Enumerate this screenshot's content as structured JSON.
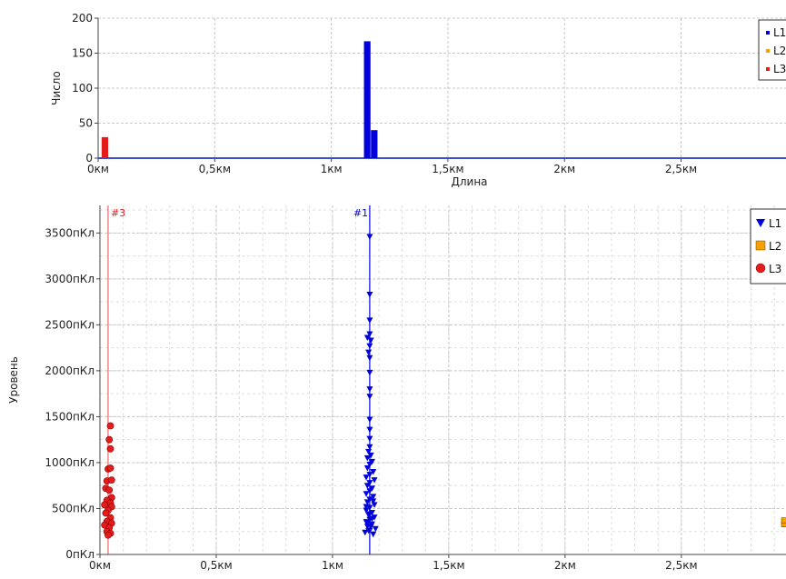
{
  "colors": {
    "L1": "#0000dd",
    "L2": "#f5a000",
    "L3": "#e31c1c",
    "grid": "#c8c8c8",
    "axis": "#444444"
  },
  "chart_data": [
    {
      "type": "bar",
      "xlabel": "Длина",
      "ylabel": "Число",
      "xlim": [
        0,
        2.95
      ],
      "ylim": [
        0,
        200
      ],
      "x_ticks": [
        {
          "value": 0,
          "label": "0км"
        },
        {
          "value": 0.5,
          "label": "0,5км"
        },
        {
          "value": 1,
          "label": "1км"
        },
        {
          "value": 1.5,
          "label": "1,5км"
        },
        {
          "value": 2,
          "label": "2км"
        },
        {
          "value": 2.5,
          "label": "2,5км"
        }
      ],
      "y_ticks": [
        {
          "value": 0,
          "label": "0"
        },
        {
          "value": 50,
          "label": "50"
        },
        {
          "value": 100,
          "label": "100"
        },
        {
          "value": 150,
          "label": "150"
        },
        {
          "value": 200,
          "label": "200"
        }
      ],
      "legend": {
        "placement": "top-right",
        "entries": [
          "L1",
          "L2",
          "L3"
        ]
      },
      "series": [
        {
          "name": "L1",
          "bins": [
            {
              "x0": 1.14,
              "x1": 1.17,
              "value": 167
            },
            {
              "x0": 1.17,
              "x1": 1.2,
              "value": 40
            }
          ]
        },
        {
          "name": "L2",
          "bins": []
        },
        {
          "name": "L3",
          "bins": [
            {
              "x0": 0.015,
              "x1": 0.045,
              "value": 30
            }
          ]
        }
      ]
    },
    {
      "type": "scatter",
      "xlabel": "",
      "ylabel": "Уровень",
      "xlim": [
        0,
        2.95
      ],
      "ylim": [
        0,
        3800
      ],
      "x_ticks": [
        {
          "value": 0,
          "label": "0км"
        },
        {
          "value": 0.5,
          "label": "0,5км"
        },
        {
          "value": 1,
          "label": "1км"
        },
        {
          "value": 1.5,
          "label": "1,5км"
        },
        {
          "value": 2,
          "label": "2км"
        },
        {
          "value": 2.5,
          "label": "2,5км"
        }
      ],
      "y_ticks": [
        {
          "value": 0,
          "label": "0пКл"
        },
        {
          "value": 500,
          "label": "500пКл"
        },
        {
          "value": 1000,
          "label": "1000пКл"
        },
        {
          "value": 1500,
          "label": "1500пКл"
        },
        {
          "value": 2000,
          "label": "2000пКл"
        },
        {
          "value": 2500,
          "label": "2500пКл"
        },
        {
          "value": 3000,
          "label": "3000пКл"
        },
        {
          "value": 3500,
          "label": "3500пКл"
        }
      ],
      "markers": [
        {
          "label": "#3",
          "x": 0.035,
          "series": "L3"
        },
        {
          "label": "#1",
          "x": 1.16,
          "series": "L1"
        }
      ],
      "legend": {
        "placement": "top-right",
        "entries": [
          "L1",
          "L2",
          "L3"
        ]
      },
      "series": [
        {
          "name": "L1",
          "marker": "triangle-down",
          "points": [
            [
              1.16,
              3460
            ],
            [
              1.16,
              2830
            ],
            [
              1.16,
              2550
            ],
            [
              1.16,
              2400
            ],
            [
              1.15,
              2360
            ],
            [
              1.165,
              2330
            ],
            [
              1.16,
              2270
            ],
            [
              1.155,
              2200
            ],
            [
              1.16,
              2140
            ],
            [
              1.16,
              1980
            ],
            [
              1.16,
              1800
            ],
            [
              1.16,
              1720
            ],
            [
              1.16,
              1470
            ],
            [
              1.16,
              1360
            ],
            [
              1.16,
              1260
            ],
            [
              1.16,
              1170
            ],
            [
              1.155,
              1120
            ],
            [
              1.165,
              1080
            ],
            [
              1.15,
              1050
            ],
            [
              1.17,
              1010
            ],
            [
              1.16,
              980
            ],
            [
              1.15,
              940
            ],
            [
              1.175,
              900
            ],
            [
              1.16,
              870
            ],
            [
              1.145,
              840
            ],
            [
              1.18,
              810
            ],
            [
              1.16,
              780
            ],
            [
              1.15,
              750
            ],
            [
              1.17,
              720
            ],
            [
              1.16,
              690
            ],
            [
              1.145,
              660
            ],
            [
              1.175,
              630
            ],
            [
              1.16,
              600
            ],
            [
              1.15,
              570
            ],
            [
              1.18,
              540
            ],
            [
              1.16,
              510
            ],
            [
              1.145,
              480
            ],
            [
              1.17,
              455
            ],
            [
              1.155,
              430
            ],
            [
              1.18,
              405
            ],
            [
              1.16,
              380
            ],
            [
              1.145,
              355
            ],
            [
              1.17,
              330
            ],
            [
              1.15,
              305
            ],
            [
              1.185,
              280
            ],
            [
              1.16,
              260
            ],
            [
              1.14,
              240
            ],
            [
              1.175,
              220
            ],
            [
              1.155,
              260
            ],
            [
              1.165,
              300
            ],
            [
              1.15,
              340
            ],
            [
              1.17,
              390
            ],
            [
              1.16,
              440
            ],
            [
              1.145,
              520
            ],
            [
              1.175,
              580
            ]
          ]
        },
        {
          "name": "L2",
          "marker": "square",
          "points": [
            [
              2.96,
              330
            ],
            [
              2.96,
              370
            ]
          ]
        },
        {
          "name": "L3",
          "marker": "circle",
          "points": [
            [
              0.045,
              1400
            ],
            [
              0.04,
              1250
            ],
            [
              0.045,
              1150
            ],
            [
              0.035,
              930
            ],
            [
              0.045,
              940
            ],
            [
              0.03,
              800
            ],
            [
              0.05,
              810
            ],
            [
              0.025,
              720
            ],
            [
              0.04,
              700
            ],
            [
              0.05,
              620
            ],
            [
              0.03,
              590
            ],
            [
              0.045,
              560
            ],
            [
              0.02,
              540
            ],
            [
              0.05,
              520
            ],
            [
              0.035,
              480
            ],
            [
              0.025,
              450
            ],
            [
              0.045,
              400
            ],
            [
              0.03,
              360
            ],
            [
              0.05,
              340
            ],
            [
              0.02,
              320
            ],
            [
              0.04,
              290
            ],
            [
              0.03,
              250
            ],
            [
              0.045,
              230
            ],
            [
              0.035,
              210
            ]
          ]
        }
      ]
    }
  ]
}
